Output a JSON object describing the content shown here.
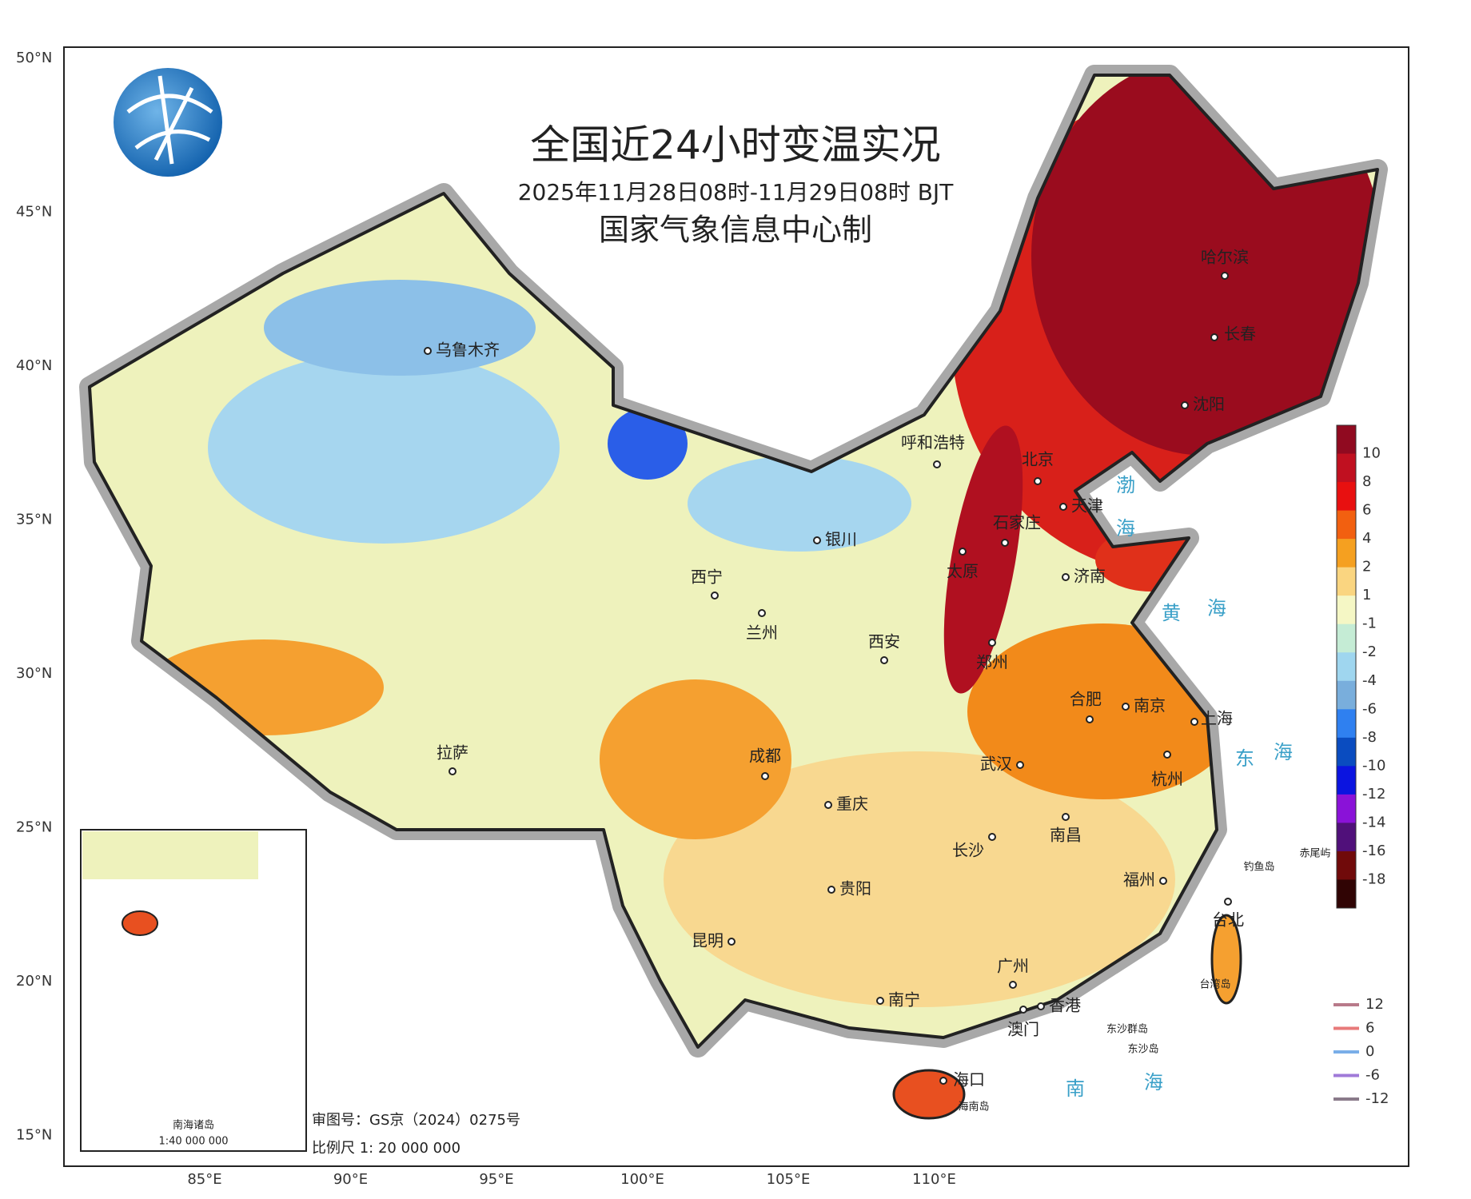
{
  "title": "全国近24小时变温实况",
  "subtitle": "2025年11月28日08时-11月29日08时 BJT",
  "producer": "国家气象信息中心制",
  "lat_labels": [
    "50°N",
    "45°N",
    "40°N",
    "35°N",
    "30°N",
    "25°N",
    "20°N",
    "15°N"
  ],
  "lon_labels": [
    "85°E",
    "90°E",
    "95°E",
    "100°E",
    "105°E",
    "110°E"
  ],
  "cities": [
    "乌鲁木齐",
    "呼和浩特",
    "北京",
    "天津",
    "石家庄",
    "银川",
    "太原",
    "济南",
    "西宁",
    "兰州",
    "西安",
    "郑州",
    "合肥",
    "南京",
    "上海",
    "拉萨",
    "成都",
    "武汉",
    "杭州",
    "重庆",
    "长沙",
    "南昌",
    "贵阳",
    "福州",
    "台北",
    "昆明",
    "广州",
    "南宁",
    "香港",
    "澳门",
    "海口",
    "哈尔滨",
    "长春",
    "沈阳"
  ],
  "places": [
    "海南岛",
    "台湾岛",
    "钓鱼岛",
    "赤尾屿",
    "东沙群岛",
    "东沙岛"
  ],
  "seas": [
    "渤",
    "海",
    "黄",
    "海",
    "东",
    "海",
    "南",
    "海"
  ],
  "colorbar": {
    "labels": [
      10,
      8,
      6,
      4,
      2,
      1,
      -1,
      -2,
      -4,
      -6,
      -8,
      -10,
      -12,
      -14,
      -16,
      -18
    ],
    "colors": [
      "#900a20",
      "#c01020",
      "#e81010",
      "#f26010",
      "#f5a020",
      "#fad580",
      "#f5f7c5",
      "#c5ecd5",
      "#9fd6ef",
      "#79aedc",
      "#2f80f0",
      "#0a4cc0",
      "#0b14e0",
      "#8a12d8",
      "#50107a",
      "#700a0a",
      "#300404"
    ]
  },
  "contour_legend": {
    "values": [
      12,
      6,
      0,
      -6,
      -12
    ],
    "colors": [
      "#b87a8a",
      "#e87a7a",
      "#7aaee8",
      "#a07ad8",
      "#8a7a8a"
    ]
  },
  "inset": {
    "title": "南海诸岛",
    "scale": "1:40 000 000"
  },
  "review_no": "审图号：GS京（2024）0275号",
  "scale": "比例尺 1: 20 000 000"
}
